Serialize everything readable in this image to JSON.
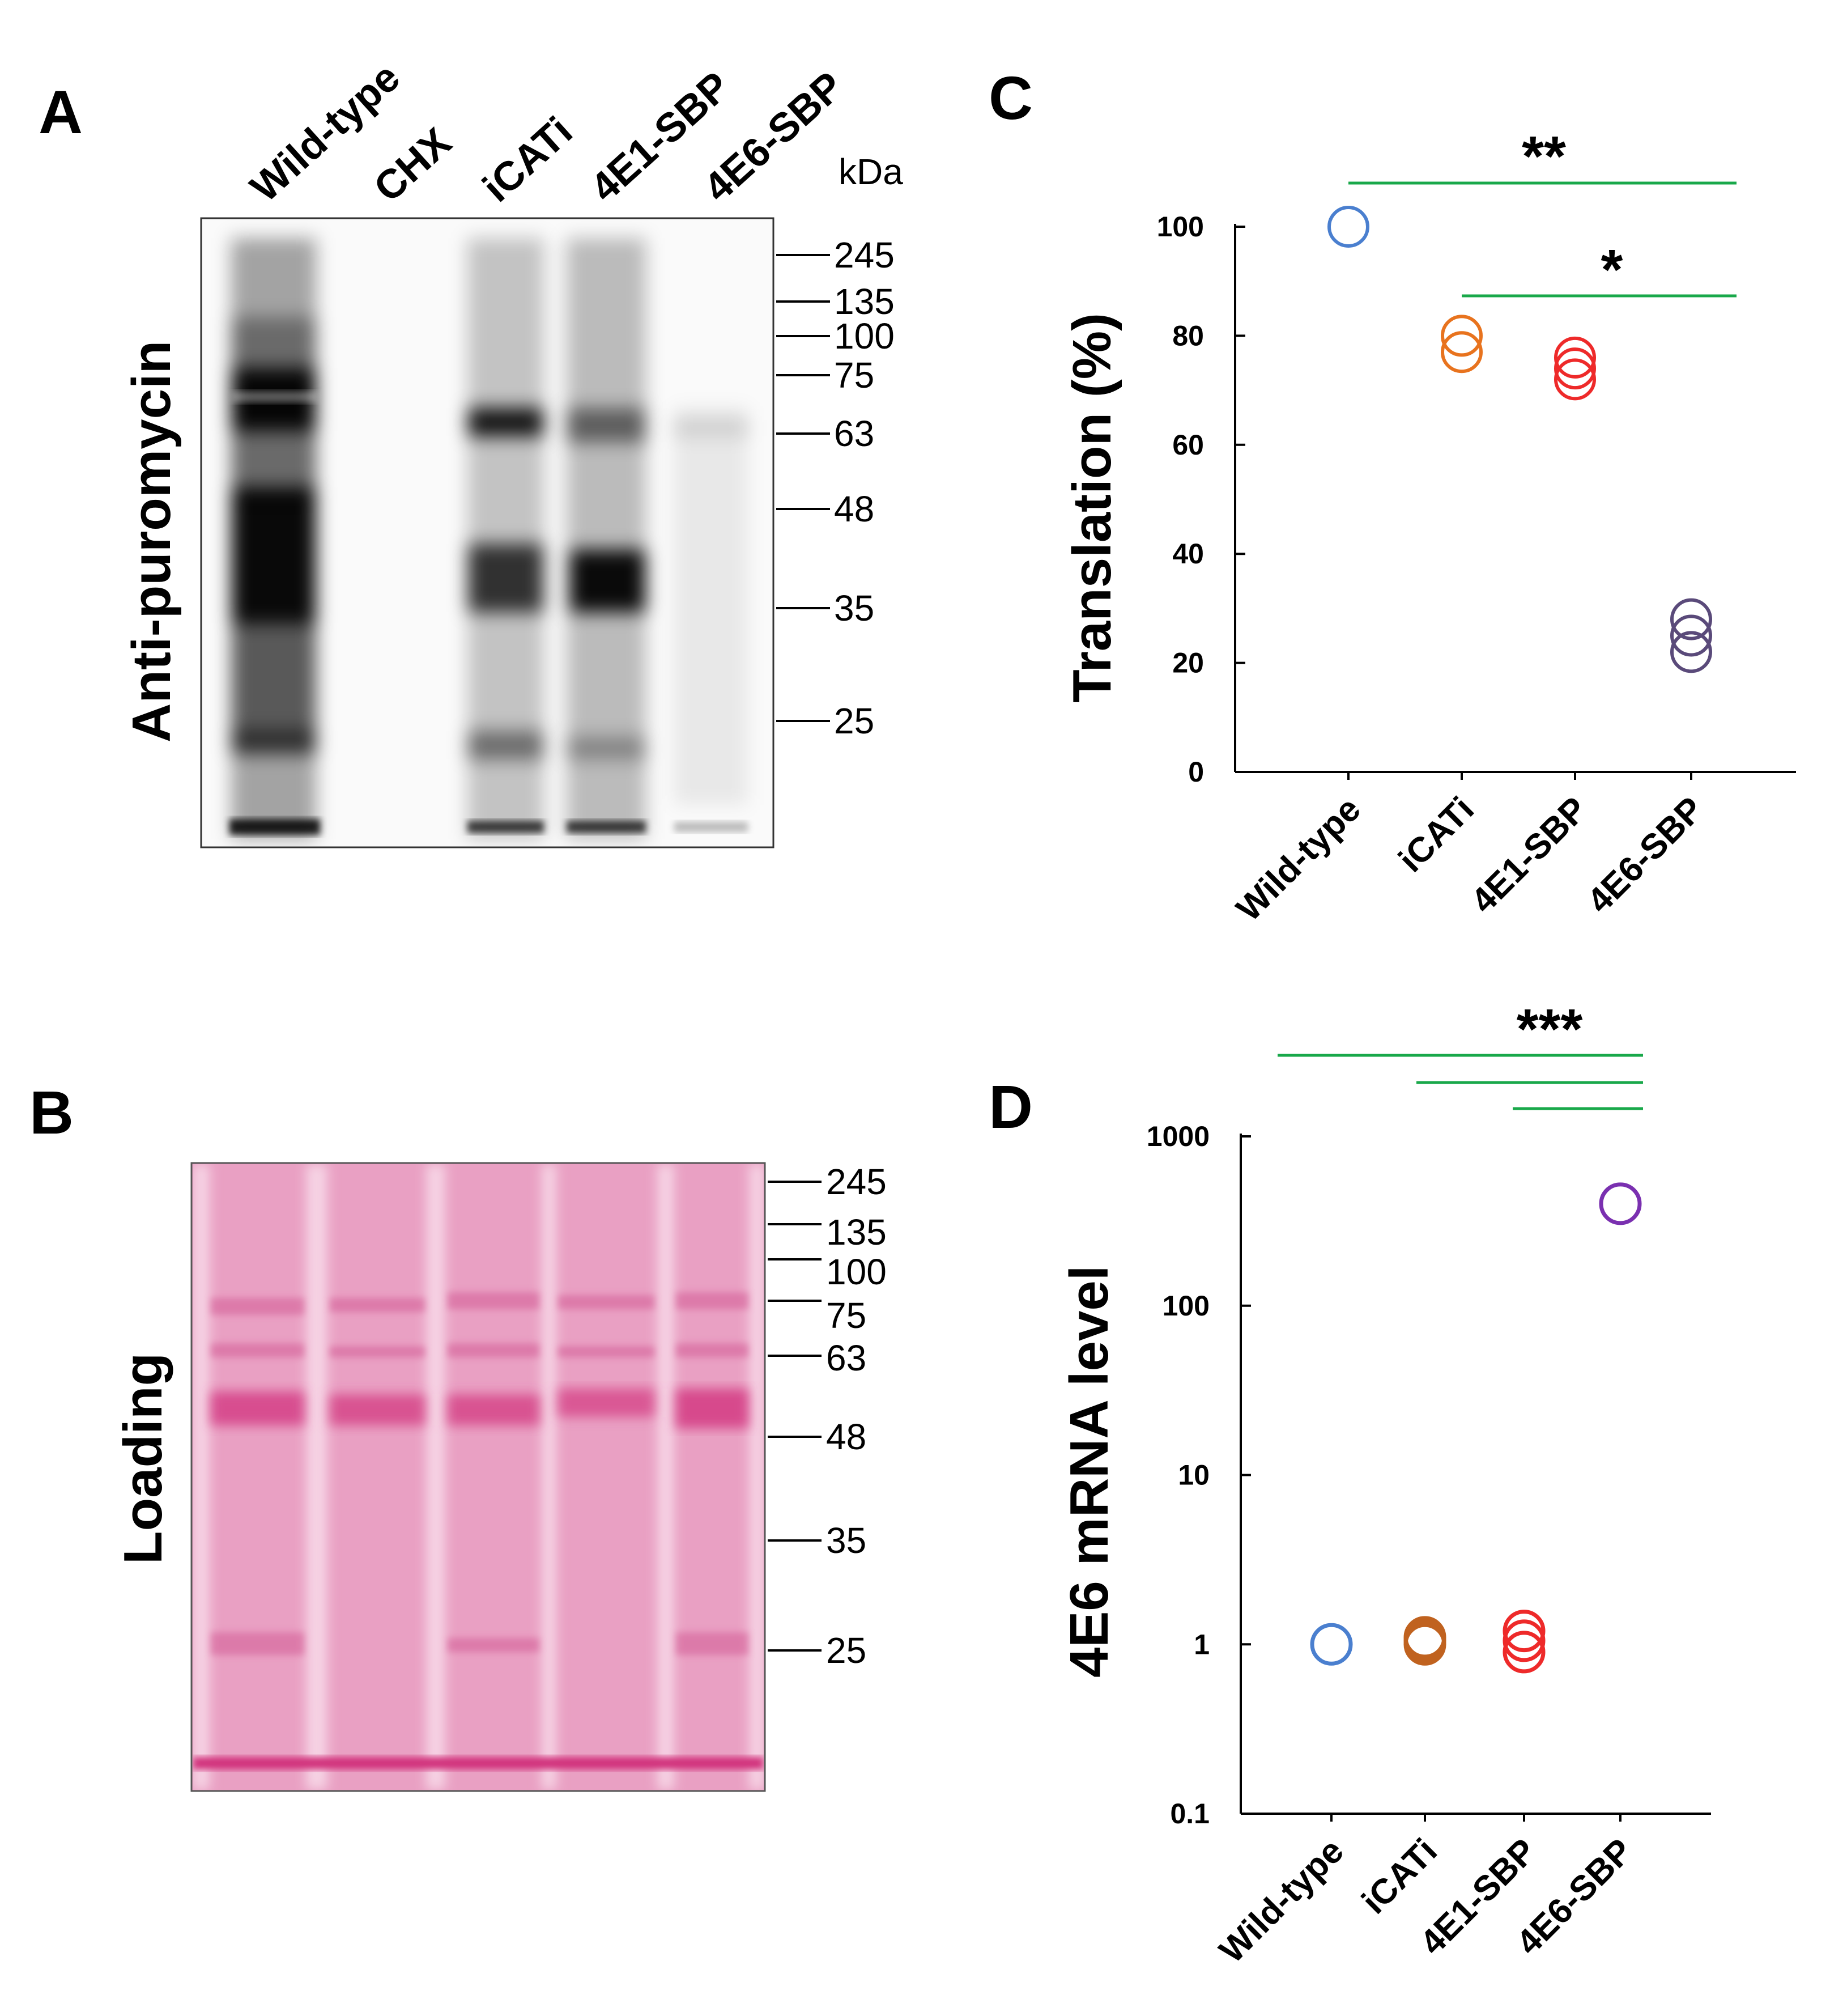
{
  "panels": {
    "A": {
      "letter": "A",
      "lanes": [
        "Wild-type",
        "CHX",
        "iCATi",
        "4E1-SBP",
        "4E6-SBP"
      ],
      "unit": "kDa",
      "markers": [
        "245",
        "135",
        "100",
        "75",
        "63",
        "48",
        "35",
        "25"
      ],
      "ylabel": "Anti-puromycin"
    },
    "B": {
      "letter": "B",
      "markers": [
        "245",
        "135",
        "100",
        "75",
        "63",
        "48",
        "35",
        "25"
      ],
      "ylabel": "Loading"
    },
    "C": {
      "letter": "C"
    },
    "D": {
      "letter": "D"
    }
  },
  "chart_data": [
    {
      "type": "scatter",
      "panel": "C",
      "categories": [
        "Wild-type",
        "iCATi",
        "4E1-SBP",
        "4E6-SBP"
      ],
      "ylabel": "Translation (%)",
      "ylim": [
        0,
        100
      ],
      "yticks": [
        "0",
        "20",
        "40",
        "60",
        "80",
        "100"
      ],
      "series": [
        {
          "category": "Wild-type",
          "values": [
            100
          ],
          "color": "#4a7fcf"
        },
        {
          "category": "iCATi",
          "values": [
            80,
            77
          ],
          "color": "#e8731e"
        },
        {
          "category": "4E1-SBP",
          "values": [
            76,
            74,
            72
          ],
          "color": "#ee2a2a"
        },
        {
          "category": "4E6-SBP",
          "values": [
            28,
            25,
            22
          ],
          "color": "#5a4a7a"
        }
      ],
      "significance": [
        {
          "label": "**",
          "from": "Wild-type",
          "to": "4E6-SBP"
        },
        {
          "label": "*",
          "from": "iCATi",
          "to": "4E6-SBP"
        }
      ]
    },
    {
      "type": "scatter",
      "panel": "D",
      "categories": [
        "Wild-type",
        "iCATi",
        "4E1-SBP",
        "4E6-SBP"
      ],
      "ylabel": "4E6 mRNA level",
      "yscale": "log",
      "ylim": [
        0.1,
        1000
      ],
      "yticks": [
        "0.1",
        "1",
        "10",
        "100",
        "1000"
      ],
      "series": [
        {
          "category": "Wild-type",
          "values": [
            1
          ],
          "color": "#4a7fcf"
        },
        {
          "category": "iCATi",
          "values": [
            1.1,
            1.05,
            1.0
          ],
          "color": "#c0621f"
        },
        {
          "category": "4E1-SBP",
          "values": [
            1.2,
            1.05,
            0.9
          ],
          "color": "#ee2a2a"
        },
        {
          "category": "4E6-SBP",
          "values": [
            400
          ],
          "color": "#7a30b0"
        }
      ],
      "significance": [
        {
          "label": "***",
          "lines": [
            {
              "from": "Wild-type",
              "to": "4E6-SBP"
            },
            {
              "from": "iCATi",
              "to": "4E6-SBP"
            },
            {
              "from": "4E1-SBP",
              "to": "4E6-SBP"
            }
          ]
        }
      ]
    }
  ]
}
